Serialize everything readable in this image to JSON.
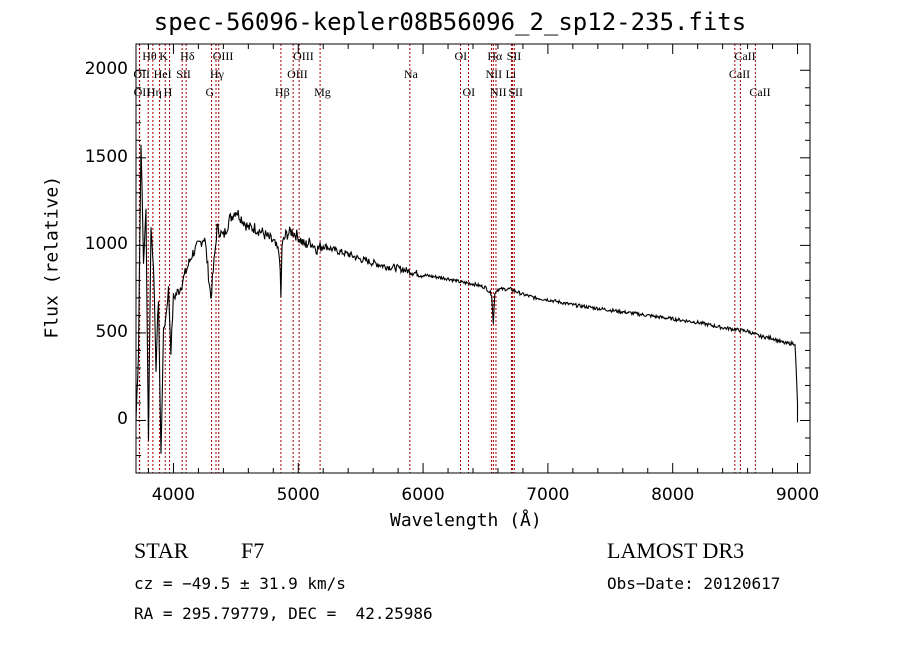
{
  "chart_data": {
    "type": "line",
    "title": "spec-56096-kepler08B56096_2_sp12-235.fits",
    "xlabel": "Wavelength (Å)",
    "ylabel": "Flux (relative)",
    "xlim": [
      3700,
      9100
    ],
    "ylim": [
      -300,
      2150
    ],
    "x_ticks": [
      "4000",
      "5000",
      "6000",
      "7000",
      "8000",
      "9000"
    ],
    "y_ticks": [
      "0",
      "500",
      "1000",
      "1500",
      "2000"
    ],
    "series": [
      {
        "name": "spectrum",
        "x": [
          3700,
          3720,
          3740,
          3760,
          3780,
          3800,
          3820,
          3840,
          3860,
          3880,
          3900,
          3920,
          3940,
          3960,
          3980,
          4000,
          4050,
          4100,
          4150,
          4200,
          4250,
          4300,
          4350,
          4400,
          4450,
          4500,
          4550,
          4600,
          4650,
          4700,
          4750,
          4800,
          4850,
          4861,
          4870,
          4900,
          4950,
          5000,
          5050,
          5100,
          5150,
          5200,
          5300,
          5400,
          5500,
          5600,
          5700,
          5800,
          5900,
          6000,
          6100,
          6200,
          6300,
          6400,
          6500,
          6550,
          6563,
          6575,
          6600,
          6700,
          6800,
          6900,
          7000,
          7200,
          7400,
          7600,
          7800,
          8000,
          8200,
          8400,
          8500,
          8600,
          8700,
          8800,
          8900,
          8980,
          9000
        ],
        "y": [
          0,
          400,
          1600,
          900,
          1200,
          -100,
          1100,
          900,
          300,
          700,
          -200,
          500,
          600,
          750,
          400,
          700,
          750,
          850,
          950,
          1000,
          1050,
          700,
          1100,
          1050,
          1150,
          1200,
          1150,
          1100,
          1100,
          1080,
          1050,
          1020,
          950,
          700,
          1000,
          1060,
          1080,
          1050,
          1000,
          1020,
          980,
          1000,
          970,
          950,
          920,
          900,
          880,
          870,
          850,
          830,
          820,
          810,
          790,
          780,
          760,
          720,
          550,
          730,
          750,
          750,
          720,
          700,
          690,
          660,
          640,
          620,
          600,
          580,
          560,
          530,
          520,
          510,
          480,
          470,
          440,
          440,
          100
        ]
      }
    ],
    "spectral_lines": [
      {
        "label": "Hθ",
        "wavelength": 3798,
        "row": 1
      },
      {
        "label": "OII",
        "wavelength": 3727,
        "row": 2
      },
      {
        "label": "OII",
        "wavelength": 3729,
        "row": 3
      },
      {
        "label": "K",
        "wavelength": 3934,
        "row": 1
      },
      {
        "label": "HeI",
        "wavelength": 3889,
        "row": 2
      },
      {
        "label": "Hη",
        "wavelength": 3835,
        "row": 3
      },
      {
        "label": "SII",
        "wavelength": 4070,
        "row": 2
      },
      {
        "label": "H",
        "wavelength": 3969,
        "row": 3
      },
      {
        "label": "Hδ",
        "wavelength": 4102,
        "row": 1
      },
      {
        "label": "OIII",
        "wavelength": 4363,
        "row": 1
      },
      {
        "label": "Hγ",
        "wavelength": 4341,
        "row": 2
      },
      {
        "label": "G",
        "wavelength": 4305,
        "row": 3
      },
      {
        "label": "Hβ",
        "wavelength": 4861,
        "row": 3
      },
      {
        "label": "OIII",
        "wavelength": 5007,
        "row": 1
      },
      {
        "label": "OIII",
        "wavelength": 4959,
        "row": 2
      },
      {
        "label": "Mg",
        "wavelength": 5175,
        "row": 3
      },
      {
        "label": "Na",
        "wavelength": 5894,
        "row": 2
      },
      {
        "label": "OI",
        "wavelength": 6300,
        "row": 1
      },
      {
        "label": "OI",
        "wavelength": 6364,
        "row": 3
      },
      {
        "label": "Hα",
        "wavelength": 6563,
        "row": 1
      },
      {
        "label": "SII",
        "wavelength": 6717,
        "row": 1
      },
      {
        "label": "NII",
        "wavelength": 6548,
        "row": 2
      },
      {
        "label": "Li",
        "wavelength": 6708,
        "row": 2
      },
      {
        "label": "NII",
        "wavelength": 6584,
        "row": 3
      },
      {
        "label": "SII",
        "wavelength": 6731,
        "row": 3
      },
      {
        "label": "CaII",
        "wavelength": 8542,
        "row": 1
      },
      {
        "label": "CaII",
        "wavelength": 8498,
        "row": 2
      },
      {
        "label": "CaII",
        "wavelength": 8662,
        "row": 3
      }
    ]
  },
  "info": {
    "object_class": "STAR",
    "subclass": "F7",
    "survey": "LAMOST DR3",
    "cz": "cz = −49.5 ± 31.9 km/s",
    "obs_date": "Obs−Date: 20120617",
    "coords": "RA = 295.79779, DEC =  42.25986"
  },
  "colors": {
    "line": "#000000",
    "marker": "#aa0000"
  }
}
